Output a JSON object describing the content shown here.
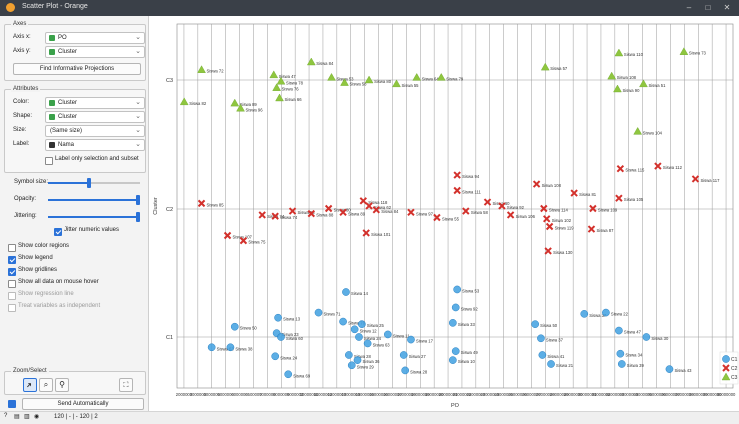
{
  "window": {
    "title": "Scatter Plot - Orange",
    "minimize": "–",
    "maximize": "□",
    "close": "✕"
  },
  "axes_box": {
    "title": "Axes",
    "axis_x_label": "Axis x:",
    "axis_x_value": "PO",
    "axis_y_label": "Axis y:",
    "axis_y_value": "Cluster",
    "find_button": "Find Informative Projections"
  },
  "attributes_box": {
    "title": "Attributes",
    "color_label": "Color:",
    "color_value": "Cluster",
    "shape_label": "Shape:",
    "shape_value": "Cluster",
    "size_label": "Size:",
    "size_value": "(Same size)",
    "label_label": "Label:",
    "label_value": "Nama",
    "label_only_selection": "Label only selection and subset"
  },
  "symbol_box": {
    "symbol_size_label": "Symbol size:",
    "symbol_size_level": 0.45,
    "opacity_label": "Opacity:",
    "opacity_level": 0.98,
    "jittering_label": "Jittering:",
    "jittering_level": 0.98,
    "jitter_numeric": "Jitter numeric values"
  },
  "options": [
    {
      "label": "Show color regions",
      "checked": false,
      "enabled": true
    },
    {
      "label": "Show legend",
      "checked": true,
      "enabled": true
    },
    {
      "label": "Show gridlines",
      "checked": true,
      "enabled": true
    },
    {
      "label": "Show all data on mouse hover",
      "checked": false,
      "enabled": true
    },
    {
      "label": "Show regression line",
      "checked": false,
      "enabled": false
    },
    {
      "label": "Treat variables as independent",
      "checked": false,
      "enabled": false
    }
  ],
  "zoom_box": {
    "title": "Zoom/Select",
    "pointer_icon": "➔",
    "zoom_icon": "⌕",
    "fit_icon": "⛶"
  },
  "send_button": "Send Automatically",
  "statusbar": {
    "text": "120 | - | -   120 | 2"
  },
  "colors": {
    "c1": "#3fa0e0",
    "c2": "#d3312c",
    "c3": "#8fc63f",
    "accent": "#2b72d8"
  },
  "chart_data": {
    "type": "scatter",
    "xlabel": "PO",
    "ylabel": "Cluster",
    "x_ticks": [
      "2000000",
      "3000000",
      "4000000",
      "5000000",
      "6000000",
      "6500000",
      "7000000",
      "8000000",
      "9000000",
      "10000000",
      "11000000",
      "12000000",
      "13000000",
      "14000000",
      "15000000",
      "16000000",
      "17000000",
      "18000000",
      "19000000",
      "20000000",
      "21000000",
      "22000000",
      "23000000",
      "24000000",
      "25000000",
      "26000000",
      "27000000",
      "28000000",
      "29000000",
      "30000000",
      "31000000",
      "32000000",
      "33000000",
      "34000000",
      "35000000",
      "36000000",
      "37000000",
      "38000000",
      "39000000",
      "40000000"
    ],
    "y_categories": [
      "C1",
      "C2",
      "C3"
    ],
    "grid": true,
    "legend": {
      "placement": "right",
      "entries": [
        "C1",
        "C2",
        "C3"
      ]
    },
    "series": [
      {
        "name": "C3",
        "points": [
          {
            "x": 3200000,
            "y": 3.08,
            "label": "Siswa 72"
          },
          {
            "x": 2000000,
            "y": 2.83,
            "label": "Siswa 82"
          },
          {
            "x": 5500000,
            "y": 2.82,
            "label": "Siswa 89"
          },
          {
            "x": 5900000,
            "y": 2.78,
            "label": "Siswa 96"
          },
          {
            "x": 8200000,
            "y": 3.04,
            "label": "Siswa 47"
          },
          {
            "x": 8700000,
            "y": 2.99,
            "label": "Siswa 78"
          },
          {
            "x": 8400000,
            "y": 2.94,
            "label": "Siswa 76"
          },
          {
            "x": 8600000,
            "y": 2.86,
            "label": "Siswa 66"
          },
          {
            "x": 10800000,
            "y": 3.14,
            "label": "Siswa 84"
          },
          {
            "x": 12200000,
            "y": 3.02,
            "label": "Siswa 53"
          },
          {
            "x": 13100000,
            "y": 2.98,
            "label": "Siswa 58"
          },
          {
            "x": 14800000,
            "y": 3.0,
            "label": "Siswa 80"
          },
          {
            "x": 16700000,
            "y": 2.97,
            "label": "Siswa 55"
          },
          {
            "x": 18100000,
            "y": 3.02,
            "label": "Siswa 64"
          },
          {
            "x": 19800000,
            "y": 3.02,
            "label": "Siswa 79"
          },
          {
            "x": 27000000,
            "y": 3.1,
            "label": "Siswa 57"
          },
          {
            "x": 32100000,
            "y": 3.21,
            "label": "Siswa 110"
          },
          {
            "x": 36600000,
            "y": 3.22,
            "label": "Siswa 73"
          },
          {
            "x": 31600000,
            "y": 3.03,
            "label": "Siswa 108"
          },
          {
            "x": 32000000,
            "y": 2.93,
            "label": "Siswa 90"
          },
          {
            "x": 33800000,
            "y": 2.97,
            "label": "Siswa 51"
          },
          {
            "x": 33400000,
            "y": 2.6,
            "label": "Siswa 104"
          }
        ]
      },
      {
        "name": "C2",
        "points": [
          {
            "x": 3200000,
            "y": 2.04,
            "label": "Siswa 85"
          },
          {
            "x": 5000000,
            "y": 1.79,
            "label": "Siswa 107"
          },
          {
            "x": 6100000,
            "y": 1.75,
            "label": "Siswa 75"
          },
          {
            "x": 7400000,
            "y": 1.95,
            "label": "Siswa 74"
          },
          {
            "x": 8300000,
            "y": 1.94,
            "label": "Siswa 74"
          },
          {
            "x": 9500000,
            "y": 1.98,
            "label": "Siswa 86"
          },
          {
            "x": 10800000,
            "y": 1.96,
            "label": "Siswa 88"
          },
          {
            "x": 12000000,
            "y": 2.0,
            "label": "Siswa 80"
          },
          {
            "x": 13000000,
            "y": 1.97,
            "label": "Siswa 89"
          },
          {
            "x": 14400000,
            "y": 2.06,
            "label": "Siswa 118"
          },
          {
            "x": 14800000,
            "y": 2.02,
            "label": "Siswa 62"
          },
          {
            "x": 15300000,
            "y": 1.99,
            "label": "Siswa 84"
          },
          {
            "x": 14600000,
            "y": 1.81,
            "label": "Siswa 101"
          },
          {
            "x": 17700000,
            "y": 1.97,
            "label": "Siswa 97"
          },
          {
            "x": 19500000,
            "y": 1.93,
            "label": "Siswa 55"
          },
          {
            "x": 21500000,
            "y": 1.98,
            "label": "Siswa 58"
          },
          {
            "x": 20900000,
            "y": 2.26,
            "label": "Siswa 94"
          },
          {
            "x": 20900000,
            "y": 2.14,
            "label": "Siswa 111"
          },
          {
            "x": 23000000,
            "y": 2.05,
            "label": "Siswa 60"
          },
          {
            "x": 24000000,
            "y": 2.02,
            "label": "Siswa 92"
          },
          {
            "x": 24600000,
            "y": 1.95,
            "label": "Siswa 106"
          },
          {
            "x": 26400000,
            "y": 2.19,
            "label": "Siswa 108"
          },
          {
            "x": 26900000,
            "y": 2.0,
            "label": "Siswa 114"
          },
          {
            "x": 27100000,
            "y": 1.92,
            "label": "Siswa 102"
          },
          {
            "x": 27300000,
            "y": 1.86,
            "label": "Siswa 119"
          },
          {
            "x": 27200000,
            "y": 1.67,
            "label": "Siswa 130"
          },
          {
            "x": 29000000,
            "y": 2.12,
            "label": "Siswa 81"
          },
          {
            "x": 30300000,
            "y": 2.0,
            "label": "Siswa 109"
          },
          {
            "x": 30200000,
            "y": 1.84,
            "label": "Siswa 87"
          },
          {
            "x": 32200000,
            "y": 2.31,
            "label": "Siswa 115"
          },
          {
            "x": 32100000,
            "y": 2.08,
            "label": "Siswa 105"
          },
          {
            "x": 34800000,
            "y": 2.33,
            "label": "Siswa 112"
          },
          {
            "x": 37400000,
            "y": 2.23,
            "label": "Siswa 117"
          }
        ]
      },
      {
        "name": "C1",
        "points": [
          {
            "x": 5500000,
            "y": 1.08,
            "label": "Siswa 50"
          },
          {
            "x": 3900000,
            "y": 0.92,
            "label": "Siswa 63"
          },
          {
            "x": 5200000,
            "y": 0.92,
            "label": "Siswa 38"
          },
          {
            "x": 8500000,
            "y": 1.15,
            "label": "Siswa 13"
          },
          {
            "x": 8400000,
            "y": 1.03,
            "label": "Siswa 23"
          },
          {
            "x": 8700000,
            "y": 1.0,
            "label": "Siswa 60"
          },
          {
            "x": 8300000,
            "y": 0.85,
            "label": "Siswa 24"
          },
          {
            "x": 9200000,
            "y": 0.71,
            "label": "Siswa 69"
          },
          {
            "x": 11300000,
            "y": 1.19,
            "label": "Siswa 71"
          },
          {
            "x": 13200000,
            "y": 1.35,
            "label": "Siswa 14"
          },
          {
            "x": 13000000,
            "y": 1.12,
            "label": "Siswa 70"
          },
          {
            "x": 14300000,
            "y": 1.1,
            "label": "Siswa 25"
          },
          {
            "x": 13800000,
            "y": 1.06,
            "label": "Siswa 12"
          },
          {
            "x": 14100000,
            "y": 1.0,
            "label": "Siswa 24"
          },
          {
            "x": 14700000,
            "y": 0.95,
            "label": "Siswa 63"
          },
          {
            "x": 13400000,
            "y": 0.86,
            "label": "Siswa 28"
          },
          {
            "x": 13600000,
            "y": 0.78,
            "label": "Siswa 29"
          },
          {
            "x": 14000000,
            "y": 0.82,
            "label": "Siswa 36"
          },
          {
            "x": 16100000,
            "y": 1.02,
            "label": "Siswa 11"
          },
          {
            "x": 17700000,
            "y": 0.98,
            "label": "Siswa 17"
          },
          {
            "x": 17200000,
            "y": 0.86,
            "label": "Siswa 27"
          },
          {
            "x": 17300000,
            "y": 0.74,
            "label": "Siswa 28"
          },
          {
            "x": 20900000,
            "y": 1.37,
            "label": "Siswa 53"
          },
          {
            "x": 20800000,
            "y": 1.23,
            "label": "Siswa 92"
          },
          {
            "x": 20600000,
            "y": 1.11,
            "label": "Siswa 33"
          },
          {
            "x": 20800000,
            "y": 0.89,
            "label": "Siswa 49"
          },
          {
            "x": 20600000,
            "y": 0.82,
            "label": "Siswa 10"
          },
          {
            "x": 26300000,
            "y": 1.1,
            "label": "Siswa 50"
          },
          {
            "x": 26700000,
            "y": 0.99,
            "label": "Siswa 37"
          },
          {
            "x": 26800000,
            "y": 0.86,
            "label": "Siswa 41"
          },
          {
            "x": 27400000,
            "y": 0.79,
            "label": "Siswa 21"
          },
          {
            "x": 29700000,
            "y": 1.18,
            "label": "Siswa 37"
          },
          {
            "x": 31200000,
            "y": 1.19,
            "label": "Siswa 22"
          },
          {
            "x": 32100000,
            "y": 1.05,
            "label": "Siswa 47"
          },
          {
            "x": 34000000,
            "y": 1.0,
            "label": "Siswa 30"
          },
          {
            "x": 32200000,
            "y": 0.87,
            "label": "Siswa 34"
          },
          {
            "x": 32300000,
            "y": 0.79,
            "label": "Siswa 39"
          },
          {
            "x": 35600000,
            "y": 0.75,
            "label": "Siswa 43"
          }
        ]
      }
    ]
  }
}
